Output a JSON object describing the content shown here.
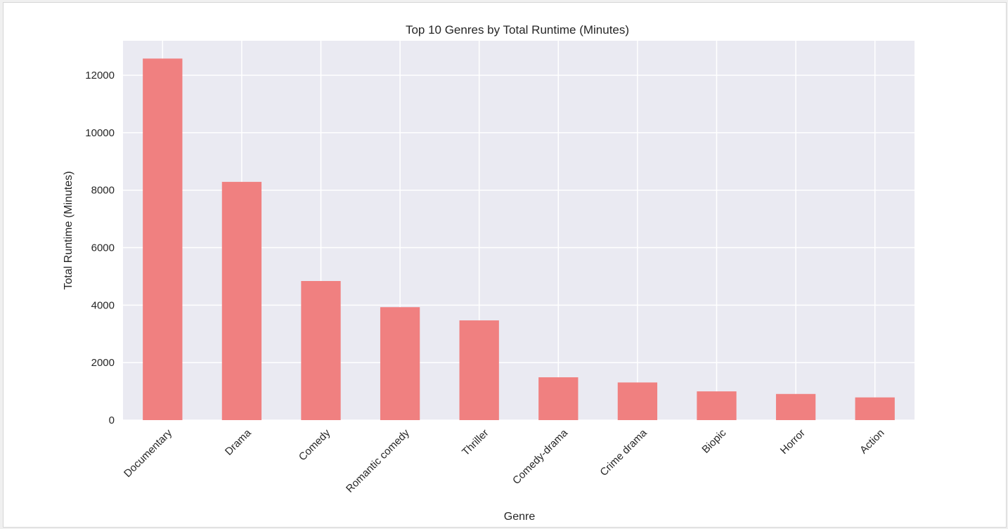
{
  "chart_data": {
    "type": "bar",
    "title": "Top 10 Genres by Total Runtime (Minutes)",
    "xlabel": "Genre",
    "ylabel": "Total Runtime (Minutes)",
    "categories": [
      "Documentary",
      "Drama",
      "Comedy",
      "Romantic comedy",
      "Thriller",
      "Comedy-drama",
      "Crime drama",
      "Biopic",
      "Horror",
      "Action"
    ],
    "values": [
      12580,
      8290,
      4840,
      3930,
      3470,
      1490,
      1310,
      1000,
      910,
      790
    ],
    "ylim": [
      0,
      13200
    ],
    "yticks": [
      0,
      2000,
      4000,
      6000,
      8000,
      10000,
      12000
    ],
    "grid": true,
    "legend": "none",
    "bar_color": "#f08080",
    "background_color": "#eaeaf2",
    "grid_color": "#ffffff"
  }
}
